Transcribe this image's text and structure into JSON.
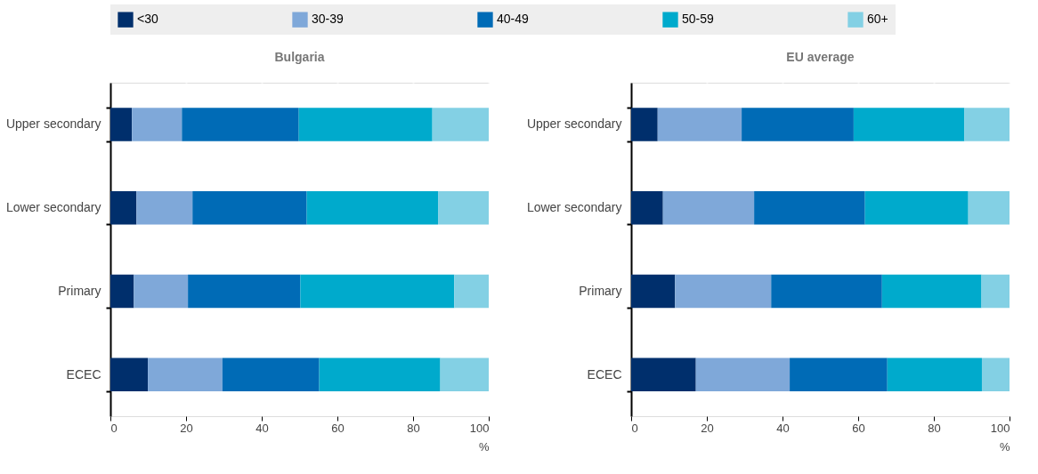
{
  "chart_data": [
    {
      "type": "bar",
      "orientation": "horizontal",
      "stacked": true,
      "title": "Bulgaria",
      "xlabel": "%",
      "categories": [
        "Upper secondary",
        "Lower secondary",
        "Primary",
        "ECEC"
      ],
      "series": [
        {
          "name": "<30",
          "color": "#002f6c",
          "values": [
            5.7,
            6.9,
            6.2,
            9.9
          ]
        },
        {
          "name": "30-39",
          "color": "#7fa8d9",
          "values": [
            13.2,
            14.8,
            14.3,
            19.7
          ]
        },
        {
          "name": "40-49",
          "color": "#006bb6",
          "values": [
            30.9,
            30.2,
            29.7,
            25.6
          ]
        },
        {
          "name": "50-59",
          "color": "#00aacc",
          "values": [
            35.3,
            34.7,
            40.7,
            32.0
          ]
        },
        {
          "name": "60+",
          "color": "#83d0e4",
          "values": [
            14.9,
            13.4,
            9.1,
            12.8
          ]
        }
      ],
      "xlim": [
        0,
        100
      ],
      "xticks": [
        0,
        20,
        40,
        60,
        80,
        100
      ],
      "grid": true,
      "legend": "top"
    },
    {
      "type": "bar",
      "orientation": "horizontal",
      "stacked": true,
      "title": "EU average",
      "xlabel": "%",
      "categories": [
        "Upper secondary",
        "Lower secondary",
        "Primary",
        "ECEC"
      ],
      "series": [
        {
          "name": "<30",
          "color": "#002f6c",
          "values": [
            7.0,
            8.4,
            11.6,
            17.1
          ]
        },
        {
          "name": "30-39",
          "color": "#7fa8d9",
          "values": [
            22.2,
            24.1,
            25.4,
            24.8
          ]
        },
        {
          "name": "40-49",
          "color": "#006bb6",
          "values": [
            29.6,
            29.3,
            29.3,
            25.8
          ]
        },
        {
          "name": "50-59",
          "color": "#00aacc",
          "values": [
            29.3,
            27.3,
            26.3,
            25.0
          ]
        },
        {
          "name": "60+",
          "color": "#83d0e4",
          "values": [
            11.9,
            10.9,
            7.4,
            7.3
          ]
        }
      ],
      "xlim": [
        0,
        100
      ],
      "xticks": [
        0,
        20,
        40,
        60,
        80,
        100
      ],
      "grid": true,
      "legend": "top"
    }
  ]
}
